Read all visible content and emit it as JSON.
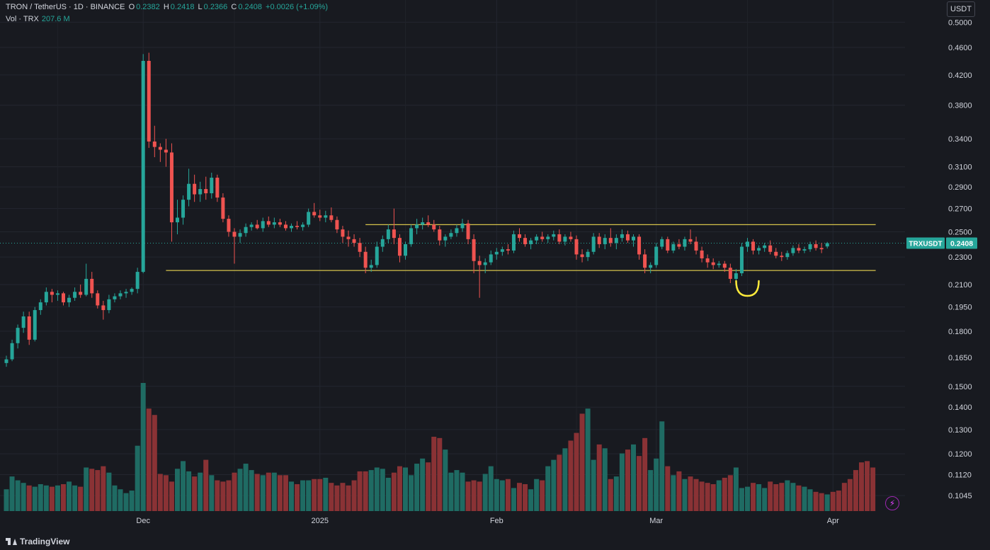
{
  "header": {
    "symbol": "TRON / TetherUS · 1D · BINANCE",
    "o_label": "O",
    "o_value": "0.2382",
    "h_label": "H",
    "h_value": "0.2418",
    "l_label": "L",
    "l_value": "0.2366",
    "c_label": "C",
    "c_value": "0.2408",
    "change": "+0.0026 (+1.09%)",
    "vol_label": "Vol · TRX",
    "vol_value": "207.6 M"
  },
  "currency_button": "USDT",
  "brand": "TradingView",
  "colors": {
    "up": "#26a69a",
    "down": "#ef5350",
    "level": "#d4c24a",
    "marker": "#ffeb3b",
    "bg": "#181a20"
  },
  "icons": {
    "alert": "lightning-icon",
    "logo": "tradingview-logo-icon"
  },
  "chart_data": {
    "type": "candlestick",
    "symbol": "TRXUSDT",
    "interval": "1D",
    "y_scale": "log",
    "price_ticks": [
      "0.5000",
      "0.4600",
      "0.4200",
      "0.3800",
      "0.3400",
      "0.3100",
      "0.2900",
      "0.2700",
      "0.2500",
      "0.2300",
      "0.2100",
      "0.1950",
      "0.1800",
      "0.1650",
      "0.1500",
      "0.1400",
      "0.1300",
      "0.1200",
      "0.1120",
      "0.1045"
    ],
    "x_labels": [
      {
        "label": "Dec",
        "index": 24
      },
      {
        "label": "2025",
        "index": 55
      },
      {
        "label": "Feb",
        "index": 86
      },
      {
        "label": "Mar",
        "index": 114
      },
      {
        "label": "Apr",
        "index": 145
      }
    ],
    "last_price_label": "TRXUSDT",
    "last_price": "0.2408",
    "levels": [
      {
        "price": 0.256,
        "from_index": 63,
        "to_index": 152
      },
      {
        "price": 0.22,
        "from_index": 28,
        "to_index": 152
      }
    ],
    "annotation": {
      "type": "cup-marker",
      "index": 130
    },
    "candles": [
      [
        0.162,
        0.166,
        0.16,
        0.164
      ],
      [
        0.164,
        0.175,
        0.163,
        0.173
      ],
      [
        0.173,
        0.184,
        0.17,
        0.182
      ],
      [
        0.182,
        0.192,
        0.179,
        0.189
      ],
      [
        0.189,
        0.192,
        0.172,
        0.175
      ],
      [
        0.175,
        0.195,
        0.174,
        0.193
      ],
      [
        0.193,
        0.2,
        0.19,
        0.198
      ],
      [
        0.198,
        0.208,
        0.196,
        0.205
      ],
      [
        0.205,
        0.207,
        0.198,
        0.203
      ],
      [
        0.203,
        0.206,
        0.199,
        0.204
      ],
      [
        0.204,
        0.205,
        0.196,
        0.198
      ],
      [
        0.198,
        0.203,
        0.195,
        0.201
      ],
      [
        0.201,
        0.208,
        0.199,
        0.205
      ],
      [
        0.205,
        0.21,
        0.201,
        0.203
      ],
      [
        0.203,
        0.225,
        0.202,
        0.214
      ],
      [
        0.214,
        0.219,
        0.201,
        0.204
      ],
      [
        0.204,
        0.206,
        0.194,
        0.196
      ],
      [
        0.196,
        0.199,
        0.187,
        0.193
      ],
      [
        0.193,
        0.203,
        0.191,
        0.2
      ],
      [
        0.2,
        0.204,
        0.198,
        0.202
      ],
      [
        0.202,
        0.206,
        0.2,
        0.204
      ],
      [
        0.204,
        0.207,
        0.201,
        0.205
      ],
      [
        0.205,
        0.208,
        0.203,
        0.207
      ],
      [
        0.207,
        0.222,
        0.204,
        0.219
      ],
      [
        0.219,
        0.45,
        0.218,
        0.44
      ],
      [
        0.44,
        0.452,
        0.33,
        0.337
      ],
      [
        0.337,
        0.355,
        0.32,
        0.331
      ],
      [
        0.331,
        0.335,
        0.315,
        0.328
      ],
      [
        0.328,
        0.34,
        0.31,
        0.325
      ],
      [
        0.325,
        0.335,
        0.242,
        0.258
      ],
      [
        0.258,
        0.278,
        0.248,
        0.262
      ],
      [
        0.262,
        0.282,
        0.256,
        0.278
      ],
      [
        0.278,
        0.308,
        0.272,
        0.293
      ],
      [
        0.293,
        0.302,
        0.276,
        0.283
      ],
      [
        0.283,
        0.295,
        0.276,
        0.288
      ],
      [
        0.288,
        0.3,
        0.278,
        0.284
      ],
      [
        0.284,
        0.304,
        0.279,
        0.299
      ],
      [
        0.299,
        0.302,
        0.276,
        0.28
      ],
      [
        0.28,
        0.284,
        0.258,
        0.261
      ],
      [
        0.261,
        0.264,
        0.246,
        0.25
      ],
      [
        0.25,
        0.253,
        0.225,
        0.246
      ],
      [
        0.246,
        0.252,
        0.241,
        0.249
      ],
      [
        0.249,
        0.257,
        0.246,
        0.254
      ],
      [
        0.254,
        0.258,
        0.251,
        0.256
      ],
      [
        0.256,
        0.26,
        0.252,
        0.253
      ],
      [
        0.253,
        0.262,
        0.25,
        0.259
      ],
      [
        0.259,
        0.263,
        0.254,
        0.256
      ],
      [
        0.256,
        0.262,
        0.253,
        0.258
      ],
      [
        0.258,
        0.261,
        0.254,
        0.256
      ],
      [
        0.256,
        0.259,
        0.251,
        0.253
      ],
      [
        0.253,
        0.257,
        0.25,
        0.255
      ],
      [
        0.255,
        0.259,
        0.252,
        0.254
      ],
      [
        0.254,
        0.258,
        0.251,
        0.256
      ],
      [
        0.256,
        0.27,
        0.254,
        0.267
      ],
      [
        0.267,
        0.275,
        0.262,
        0.264
      ],
      [
        0.264,
        0.269,
        0.259,
        0.262
      ],
      [
        0.262,
        0.268,
        0.258,
        0.264
      ],
      [
        0.264,
        0.271,
        0.258,
        0.26
      ],
      [
        0.26,
        0.263,
        0.249,
        0.252
      ],
      [
        0.252,
        0.255,
        0.241,
        0.246
      ],
      [
        0.246,
        0.251,
        0.238,
        0.244
      ],
      [
        0.244,
        0.248,
        0.238,
        0.241
      ],
      [
        0.241,
        0.245,
        0.23,
        0.234
      ],
      [
        0.234,
        0.238,
        0.218,
        0.222
      ],
      [
        0.222,
        0.228,
        0.219,
        0.224
      ],
      [
        0.224,
        0.242,
        0.222,
        0.238
      ],
      [
        0.238,
        0.247,
        0.234,
        0.244
      ],
      [
        0.244,
        0.256,
        0.241,
        0.252
      ],
      [
        0.252,
        0.27,
        0.24,
        0.245
      ],
      [
        0.245,
        0.248,
        0.226,
        0.231
      ],
      [
        0.231,
        0.242,
        0.228,
        0.24
      ],
      [
        0.24,
        0.256,
        0.238,
        0.253
      ],
      [
        0.253,
        0.261,
        0.248,
        0.256
      ],
      [
        0.256,
        0.262,
        0.252,
        0.258
      ],
      [
        0.258,
        0.264,
        0.254,
        0.256
      ],
      [
        0.256,
        0.26,
        0.25,
        0.252
      ],
      [
        0.252,
        0.255,
        0.239,
        0.243
      ],
      [
        0.243,
        0.248,
        0.238,
        0.246
      ],
      [
        0.246,
        0.252,
        0.244,
        0.249
      ],
      [
        0.249,
        0.256,
        0.246,
        0.253
      ],
      [
        0.253,
        0.261,
        0.25,
        0.257
      ],
      [
        0.257,
        0.26,
        0.24,
        0.244
      ],
      [
        0.244,
        0.248,
        0.218,
        0.227
      ],
      [
        0.227,
        0.231,
        0.201,
        0.224
      ],
      [
        0.224,
        0.229,
        0.218,
        0.226
      ],
      [
        0.226,
        0.235,
        0.224,
        0.232
      ],
      [
        0.232,
        0.237,
        0.228,
        0.234
      ],
      [
        0.234,
        0.238,
        0.231,
        0.236
      ],
      [
        0.236,
        0.24,
        0.232,
        0.235
      ],
      [
        0.235,
        0.251,
        0.233,
        0.248
      ],
      [
        0.248,
        0.253,
        0.242,
        0.245
      ],
      [
        0.245,
        0.248,
        0.238,
        0.24
      ],
      [
        0.24,
        0.245,
        0.236,
        0.243
      ],
      [
        0.243,
        0.248,
        0.24,
        0.246
      ],
      [
        0.246,
        0.25,
        0.242,
        0.244
      ],
      [
        0.244,
        0.248,
        0.241,
        0.246
      ],
      [
        0.246,
        0.251,
        0.243,
        0.248
      ],
      [
        0.248,
        0.252,
        0.24,
        0.242
      ],
      [
        0.242,
        0.248,
        0.239,
        0.246
      ],
      [
        0.246,
        0.25,
        0.242,
        0.244
      ],
      [
        0.244,
        0.247,
        0.228,
        0.232
      ],
      [
        0.232,
        0.236,
        0.226,
        0.23
      ],
      [
        0.23,
        0.236,
        0.227,
        0.234
      ],
      [
        0.234,
        0.249,
        0.232,
        0.246
      ],
      [
        0.246,
        0.249,
        0.237,
        0.24
      ],
      [
        0.24,
        0.248,
        0.236,
        0.245
      ],
      [
        0.245,
        0.253,
        0.238,
        0.241
      ],
      [
        0.241,
        0.248,
        0.236,
        0.245
      ],
      [
        0.245,
        0.252,
        0.242,
        0.248
      ],
      [
        0.248,
        0.251,
        0.241,
        0.243
      ],
      [
        0.243,
        0.248,
        0.238,
        0.246
      ],
      [
        0.246,
        0.248,
        0.228,
        0.232
      ],
      [
        0.232,
        0.236,
        0.218,
        0.222
      ],
      [
        0.222,
        0.226,
        0.218,
        0.224
      ],
      [
        0.224,
        0.241,
        0.222,
        0.238
      ],
      [
        0.238,
        0.246,
        0.236,
        0.244
      ],
      [
        0.244,
        0.246,
        0.233,
        0.235
      ],
      [
        0.235,
        0.242,
        0.233,
        0.24
      ],
      [
        0.24,
        0.244,
        0.236,
        0.238
      ],
      [
        0.238,
        0.246,
        0.235,
        0.244
      ],
      [
        0.244,
        0.252,
        0.24,
        0.242
      ],
      [
        0.242,
        0.246,
        0.232,
        0.235
      ],
      [
        0.235,
        0.238,
        0.226,
        0.229
      ],
      [
        0.229,
        0.232,
        0.222,
        0.226
      ],
      [
        0.226,
        0.229,
        0.221,
        0.224
      ],
      [
        0.224,
        0.227,
        0.222,
        0.225
      ],
      [
        0.225,
        0.227,
        0.219,
        0.222
      ],
      [
        0.222,
        0.225,
        0.211,
        0.214
      ],
      [
        0.214,
        0.221,
        0.211,
        0.218
      ],
      [
        0.218,
        0.241,
        0.216,
        0.238
      ],
      [
        0.238,
        0.245,
        0.234,
        0.242
      ],
      [
        0.242,
        0.244,
        0.232,
        0.235
      ],
      [
        0.235,
        0.239,
        0.232,
        0.237
      ],
      [
        0.237,
        0.241,
        0.234,
        0.239
      ],
      [
        0.239,
        0.243,
        0.232,
        0.234
      ],
      [
        0.234,
        0.237,
        0.229,
        0.231
      ],
      [
        0.231,
        0.234,
        0.227,
        0.23
      ],
      [
        0.23,
        0.235,
        0.228,
        0.233
      ],
      [
        0.233,
        0.239,
        0.231,
        0.237
      ],
      [
        0.237,
        0.24,
        0.233,
        0.235
      ],
      [
        0.235,
        0.238,
        0.233,
        0.236
      ],
      [
        0.236,
        0.242,
        0.234,
        0.24
      ],
      [
        0.24,
        0.243,
        0.235,
        0.237
      ],
      [
        0.237,
        0.241,
        0.233,
        0.236
      ],
      [
        0.2382,
        0.2418,
        0.2366,
        0.2408
      ]
    ],
    "volume": [
      17,
      27,
      24,
      22,
      20,
      19,
      21,
      20,
      19,
      20,
      21,
      23,
      20,
      19,
      34,
      33,
      32,
      35,
      30,
      20,
      17,
      14,
      16,
      51,
      100,
      80,
      75,
      29,
      28,
      23,
      33,
      39,
      31,
      27,
      30,
      40,
      28,
      24,
      23,
      24,
      30,
      33,
      37,
      32,
      29,
      28,
      30,
      30,
      28,
      28,
      23,
      21,
      24,
      24,
      25,
      25,
      26,
      22,
      20,
      22,
      20,
      24,
      31,
      31,
      32,
      34,
      33,
      26,
      30,
      35,
      34,
      28,
      37,
      41,
      38,
      58,
      57,
      48,
      30,
      32,
      30,
      23,
      24,
      23,
      29,
      35,
      25,
      24,
      25,
      18,
      22,
      21,
      17,
      25,
      24,
      35,
      40,
      44,
      49,
      55,
      61,
      76,
      80,
      40,
      52,
      49,
      25,
      27,
      45,
      48,
      52,
      43,
      57,
      32,
      41,
      70,
      35,
      28,
      31,
      25,
      27,
      25,
      23,
      22,
      21,
      24,
      26,
      28,
      34,
      18,
      19,
      22,
      21,
      18,
      23,
      21,
      22,
      24,
      22,
      20,
      19,
      17,
      15,
      14,
      13,
      15,
      16,
      22,
      25,
      32,
      38,
      39,
      34
    ]
  }
}
